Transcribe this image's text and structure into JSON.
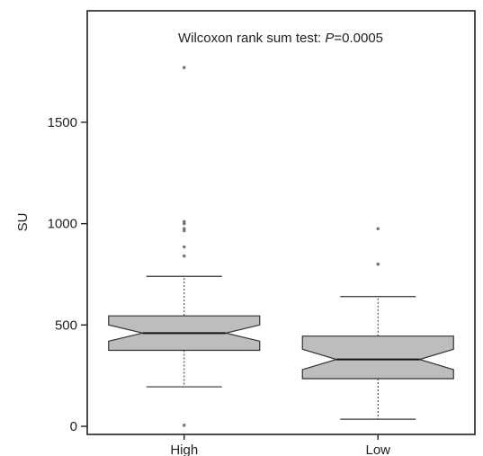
{
  "chart_data": {
    "type": "box",
    "annotation": {
      "prefix": "Wilcoxon rank sum test: ",
      "italic": "P",
      "suffix": "=0.0005"
    },
    "ylabel": "SU",
    "xlabel": "",
    "categories": [
      "High",
      "Low"
    ],
    "ylim": [
      -40,
      2050
    ],
    "yticks": [
      0,
      500,
      1000,
      1500
    ],
    "ytick_labels": [
      "0",
      "500",
      "1000",
      "1500"
    ],
    "grid": false,
    "boxes": [
      {
        "name": "High",
        "whisker_low": 195,
        "q1": 375,
        "median": 460,
        "q3": 545,
        "whisker_high": 740,
        "notch_low": 420,
        "notch_high": 500,
        "outliers": [
          5,
          840,
          885,
          965,
          975,
          1000,
          1010,
          1770
        ]
      },
      {
        "name": "Low",
        "whisker_low": 35,
        "q1": 235,
        "median": 330,
        "q3": 445,
        "whisker_high": 640,
        "notch_low": 280,
        "notch_high": 380,
        "outliers": [
          800,
          975
        ]
      }
    ],
    "colors": {
      "box_fill": "#bdbdbd",
      "stroke": "#333333",
      "outlier": "#777777"
    }
  }
}
